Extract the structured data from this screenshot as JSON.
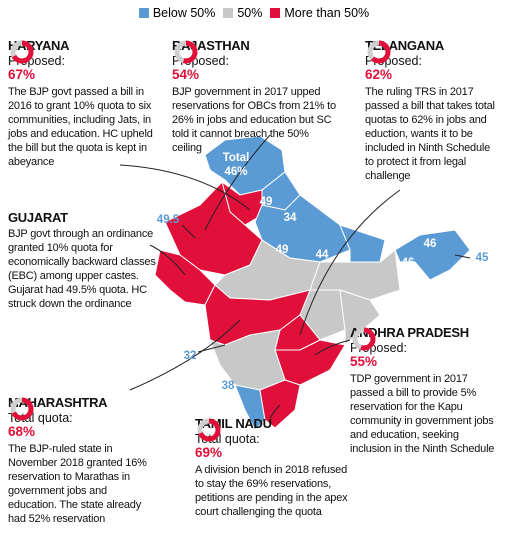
{
  "legend": {
    "items": [
      {
        "label": "Below 50%",
        "color": "#5b9bd5"
      },
      {
        "label": "50%",
        "color": "#c8c8c8"
      },
      {
        "label": "More than 50%",
        "color": "#e0103a"
      }
    ]
  },
  "callouts": [
    {
      "state": "HARYANA",
      "quota_label": "Proposed:",
      "quota": {
        "value": 67,
        "label": "67%"
      },
      "text": "The BJP govt passed a bill in 2016 to grant 10% quota to six communities, including Jats, in jobs and education. HC upheld the bill but the quota is kept in abeyance"
    },
    {
      "state": "RAJASTHAN",
      "quota_label": "Proposed:",
      "quota": {
        "value": 54,
        "label": "54%"
      },
      "text": "BJP government in 2017 upped reservations for OBCs from 21% to 26% in jobs and education but SC told it cannot breach the 50% ceiling"
    },
    {
      "state": "TELANGANA",
      "quota_label": "Proposed:",
      "quota": {
        "value": 62,
        "label": "62%"
      },
      "text": "The ruling TRS in 2017 passed a bill that takes total quotas to 62% in jobs and eduction, wants it to be included in Ninth Schedule to protect it from legal challenge"
    },
    {
      "state": "GUJARAT",
      "text": "BJP govt through an ordinance granted 10% quota for economically backward classes (EBC) among upper castes. Gujarat had 49.5% quota. HC struck down the ordinance"
    },
    {
      "state": "ANDHRA PRADESH",
      "quota_label": "Proposed:",
      "quota": {
        "value": 55,
        "label": "55%"
      },
      "text": "TDP government in 2017 passed a bill to provide 5% reservation for the Kapu community in government jobs and education, seeking inclusion in the Ninth Schedule"
    },
    {
      "state": "MAHARASHTRA",
      "quota_label": "Total quota:",
      "quota": {
        "value": 68,
        "label": "68%"
      },
      "text": "The BJP-ruled state in November 2018 granted 16% reservation to Marathas in government jobs and education. The state already had 52% reservation"
    },
    {
      "state": "TAMIL NADU",
      "quota_label": "Total quota:",
      "quota": {
        "value": 69,
        "label": "69%"
      },
      "text": "A division bench in 2018 refused to stay the 69% reservations, petitions are pending in the apex court challenging the quota"
    }
  ],
  "map_labels": [
    "Total",
    "46%",
    "49",
    "34",
    "49.5",
    "49",
    "44",
    "46",
    "46",
    "45",
    "32",
    "38"
  ]
}
